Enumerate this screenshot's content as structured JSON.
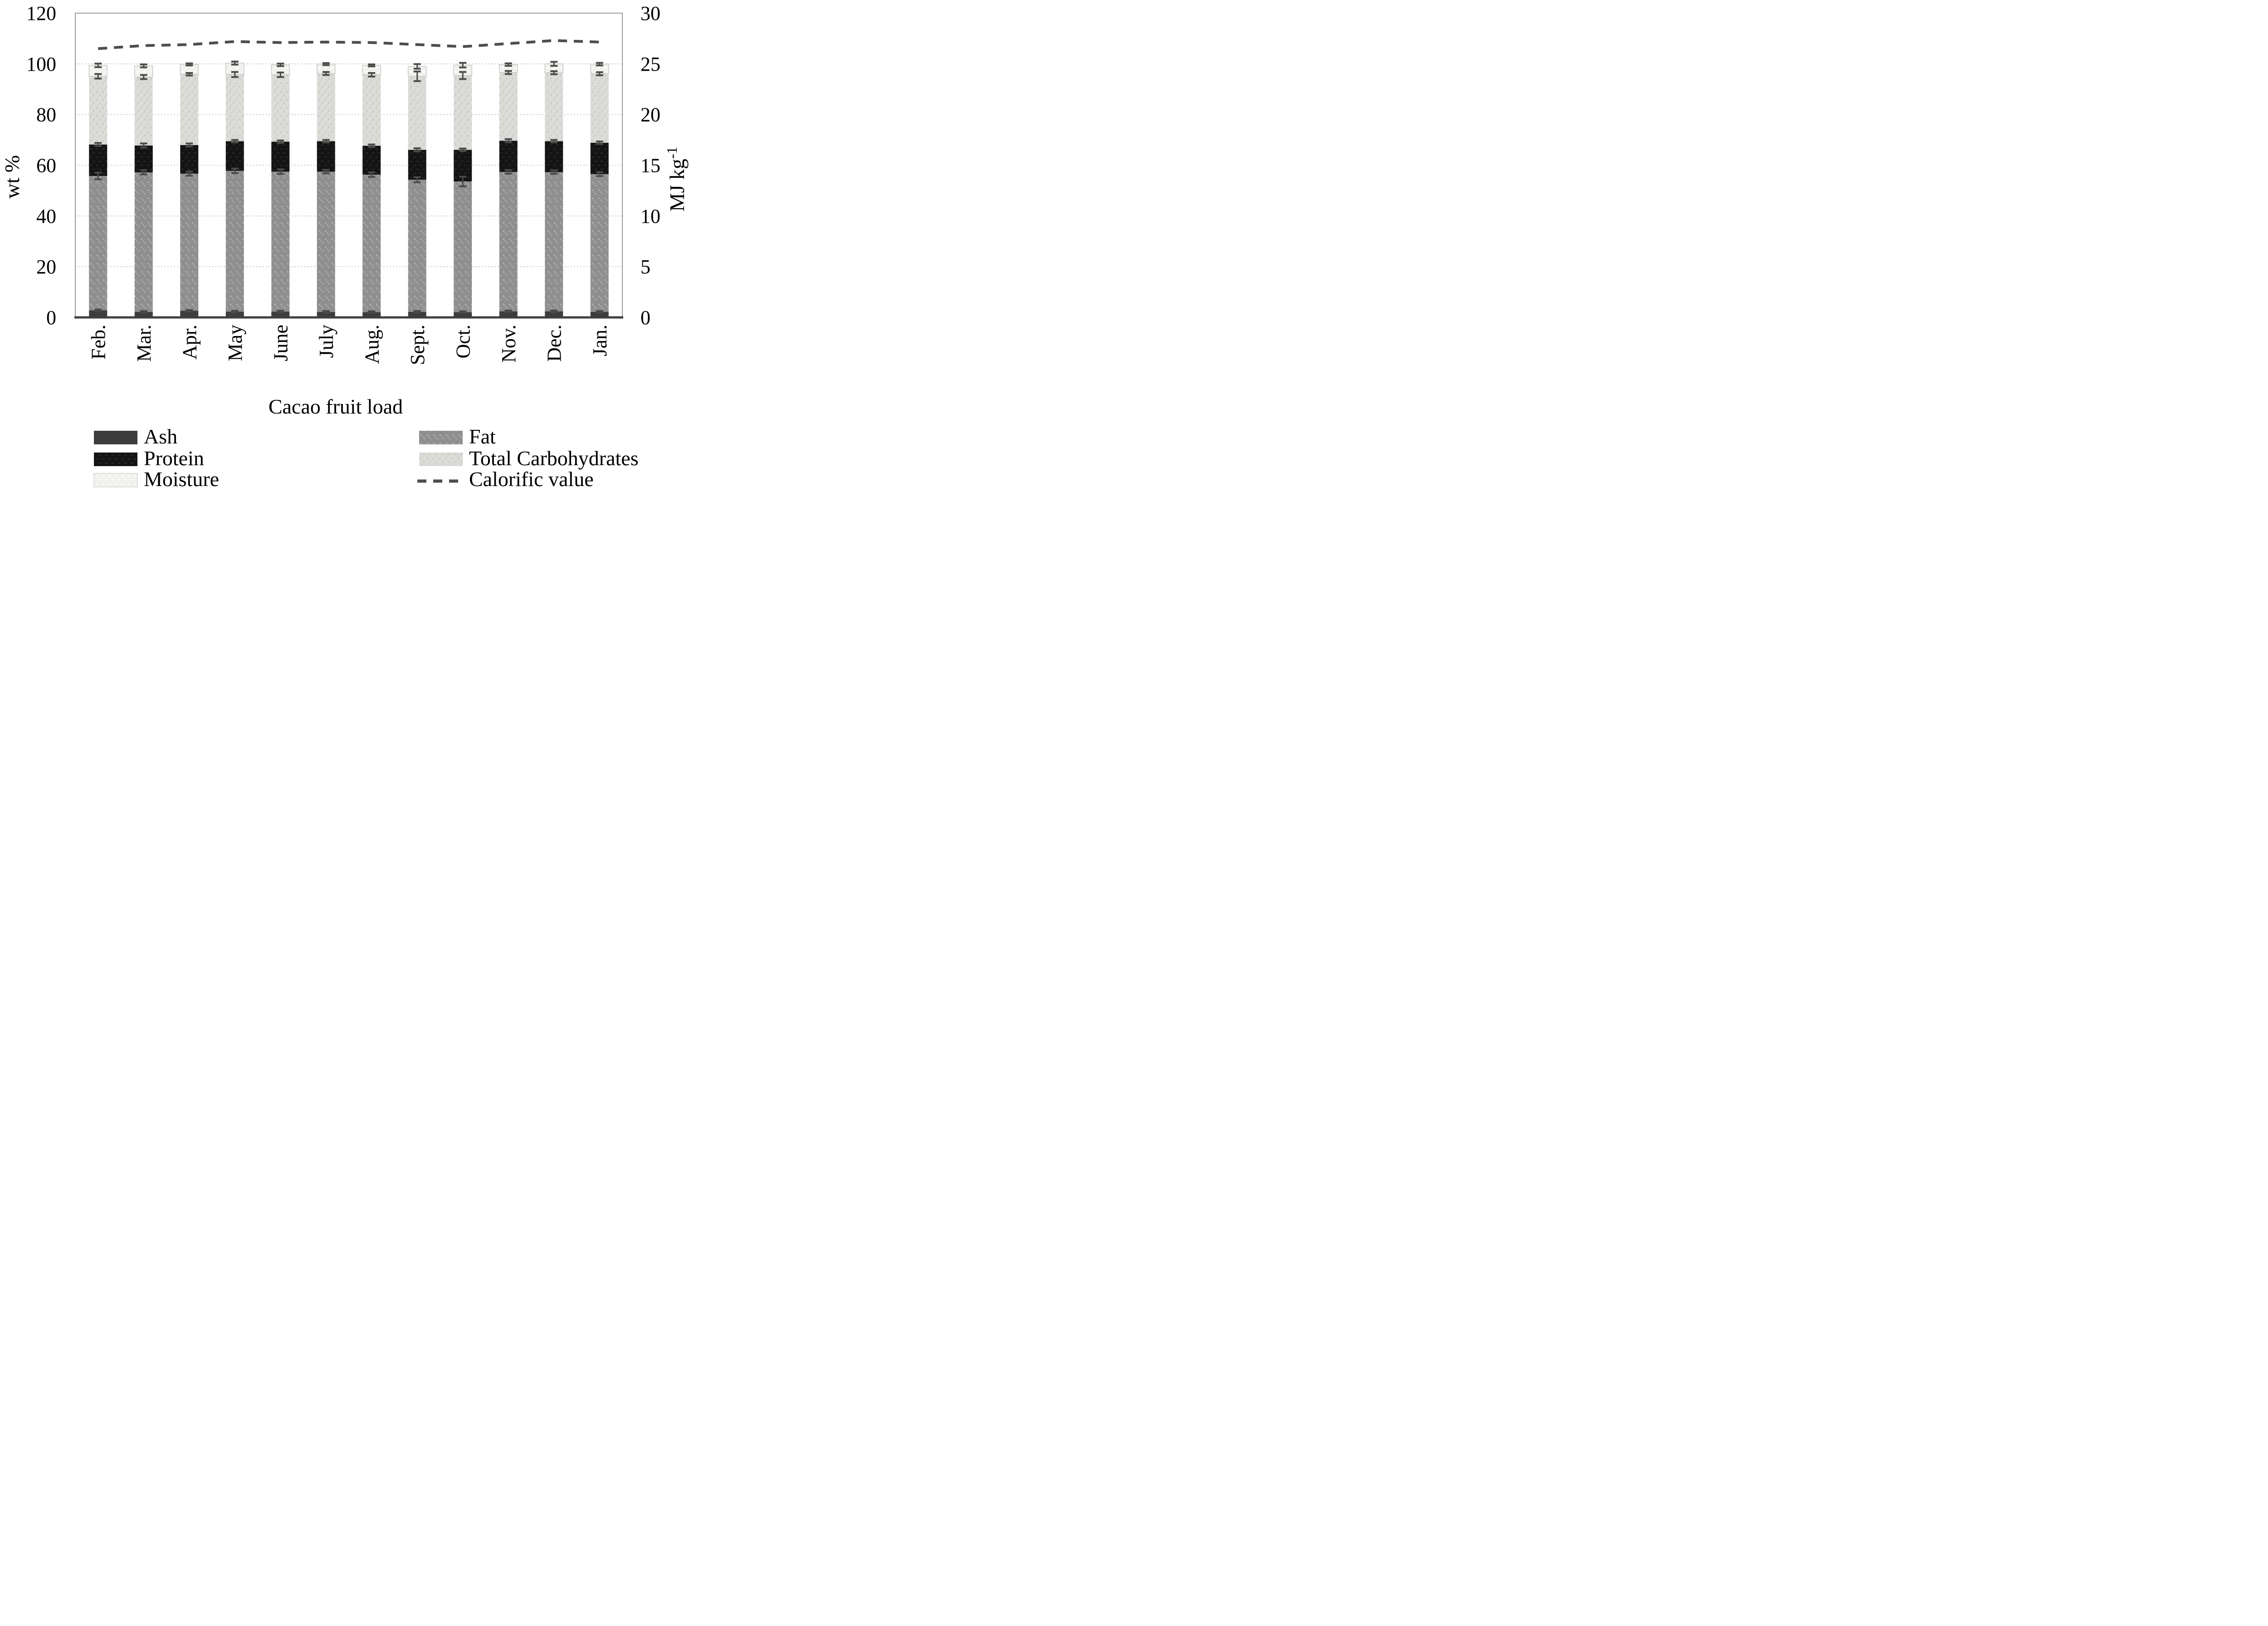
{
  "chart_data": {
    "type": "stacked-bar-with-line",
    "title_x": "Cacao fruit load",
    "ylabel_left": "wt %",
    "ylabel_right_base": "MJ kg",
    "ylabel_right_sup": "-1",
    "categories": [
      "Feb.",
      "Mar.",
      "Apr.",
      "May",
      "June",
      "July",
      "Aug.",
      "Sept.",
      "Oct.",
      "Nov.",
      "Dec.",
      "Jan."
    ],
    "left_axis": {
      "label": "wt %",
      "min": 0,
      "max": 120,
      "step": 20,
      "ticks": [
        0,
        20,
        40,
        60,
        80,
        100,
        120
      ]
    },
    "right_axis": {
      "label": "MJ kg-1",
      "min": 0,
      "max": 30,
      "step": 5,
      "ticks": [
        0,
        5,
        10,
        15,
        20,
        25,
        30
      ]
    },
    "grid": true,
    "legend_position": "bottom-two-columns",
    "series": [
      {
        "name": "Ash",
        "color": "#3d3d3d",
        "texture": "solid",
        "values": [
          2.8,
          2.2,
          2.6,
          2.3,
          2.3,
          2.2,
          2.1,
          2.2,
          2.1,
          2.4,
          2.4,
          2.2
        ]
      },
      {
        "name": "Fat",
        "color": "#8f8f8f",
        "texture": "speckle-light",
        "values": [
          53.0,
          55.0,
          54.1,
          55.5,
          55.2,
          55.3,
          54.2,
          52.1,
          51.5,
          55.0,
          54.9,
          54.3
        ]
      },
      {
        "name": "Protein",
        "color": "#141414",
        "texture": "weave-dark",
        "values": [
          12.4,
          10.6,
          11.3,
          11.7,
          11.8,
          12.0,
          11.4,
          11.8,
          12.5,
          12.3,
          12.2,
          12.4
        ]
      },
      {
        "name": "Total Carbohydrates",
        "color": "#dbdbd8",
        "texture": "speckle-gray",
        "values": [
          26.9,
          27.0,
          27.9,
          26.3,
          26.4,
          26.7,
          28.0,
          29.0,
          29.3,
          26.9,
          27.0,
          27.2
        ]
      },
      {
        "name": "Moisture",
        "color": "#f2f1ee",
        "texture": "dots-white",
        "values": [
          4.3,
          4.4,
          3.9,
          4.5,
          3.9,
          3.7,
          3.7,
          3.9,
          4.1,
          3.1,
          3.5,
          3.8
        ]
      }
    ],
    "line": {
      "name": "Calorific value",
      "color": "#4d4d4d",
      "style": "dashed",
      "axis": "right",
      "values": [
        26.5,
        26.8,
        26.9,
        27.2,
        27.1,
        27.15,
        27.1,
        26.9,
        26.7,
        27.0,
        27.3,
        27.15
      ]
    },
    "error_bars": {
      "color": "#4a4a4a",
      "ash_top": [
        0.3,
        0.3,
        0.3,
        0.3,
        0.3,
        0.3,
        0.3,
        0.3,
        0.3,
        0.3,
        0.3,
        0.3
      ],
      "fat_top": [
        1.3,
        0.8,
        0.8,
        0.9,
        0.9,
        0.7,
        0.9,
        1.0,
        1.9,
        0.7,
        0.7,
        0.8
      ],
      "protein_top": [
        0.6,
        0.8,
        0.6,
        0.5,
        0.5,
        0.5,
        0.5,
        0.6,
        0.5,
        0.6,
        0.5,
        0.5
      ],
      "carb_top": [
        0.9,
        0.8,
        0.5,
        1.0,
        0.9,
        0.6,
        0.7,
        1.9,
        1.4,
        0.6,
        0.6,
        0.6
      ],
      "total_top": [
        0.7,
        0.6,
        0.4,
        0.6,
        0.5,
        0.4,
        0.4,
        0.9,
        0.9,
        0.5,
        0.8,
        0.5
      ]
    },
    "legend_left": [
      {
        "label": "Ash"
      },
      {
        "label": "Protein"
      },
      {
        "label": "Moisture"
      }
    ],
    "legend_right": [
      {
        "label": "Fat"
      },
      {
        "label": "Total Carbohydrates"
      },
      {
        "label": "Calorific value"
      }
    ],
    "colors": {
      "grid": "#cfcfcf",
      "border": "#9b9b9b",
      "axis_bottom": "#3f3f3f",
      "text": "#000000"
    }
  }
}
